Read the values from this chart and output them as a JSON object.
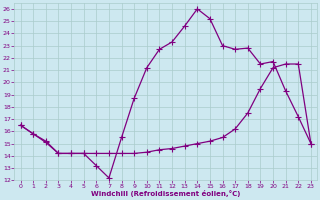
{
  "xlabel": "Windchill (Refroidissement éolien,°C)",
  "xlim": [
    -0.5,
    23.5
  ],
  "ylim": [
    12,
    26.5
  ],
  "yticks": [
    12,
    13,
    14,
    15,
    16,
    17,
    18,
    19,
    20,
    21,
    22,
    23,
    24,
    25,
    26
  ],
  "xticks": [
    0,
    1,
    2,
    3,
    4,
    5,
    6,
    7,
    8,
    9,
    10,
    11,
    12,
    13,
    14,
    15,
    16,
    17,
    18,
    19,
    20,
    21,
    22,
    23
  ],
  "bg_color": "#cde8f0",
  "line_color": "#800080",
  "grid_color": "#aacccc",
  "line1_x": [
    0,
    1,
    2,
    3,
    4,
    5,
    6,
    7,
    8,
    9,
    10,
    11,
    12,
    13,
    14,
    15,
    16,
    17,
    18,
    19,
    20,
    21,
    22,
    23
  ],
  "line1_y": [
    16.5,
    15.8,
    15.2,
    14.2,
    14.2,
    14.2,
    13.2,
    12.2,
    15.5,
    18.7,
    21.2,
    22.7,
    23.3,
    24.6,
    26.0,
    25.2,
    23.0,
    22.7,
    22.8,
    21.5,
    21.7,
    19.3,
    17.2,
    15.0
  ],
  "line2_x": [
    0,
    1,
    2,
    3,
    4,
    5,
    6,
    7,
    8,
    9,
    10,
    11,
    12,
    13,
    14,
    15,
    16,
    17,
    18,
    19,
    20,
    21,
    22,
    23
  ],
  "line2_y": [
    16.5,
    15.8,
    15.1,
    14.2,
    14.2,
    14.2,
    14.2,
    14.2,
    14.2,
    14.2,
    14.3,
    14.5,
    14.6,
    14.8,
    15.0,
    15.2,
    15.5,
    16.2,
    17.5,
    19.5,
    21.2,
    21.5,
    21.5,
    15.0
  ],
  "marker": "+",
  "markersize": 4,
  "linewidth": 0.9
}
